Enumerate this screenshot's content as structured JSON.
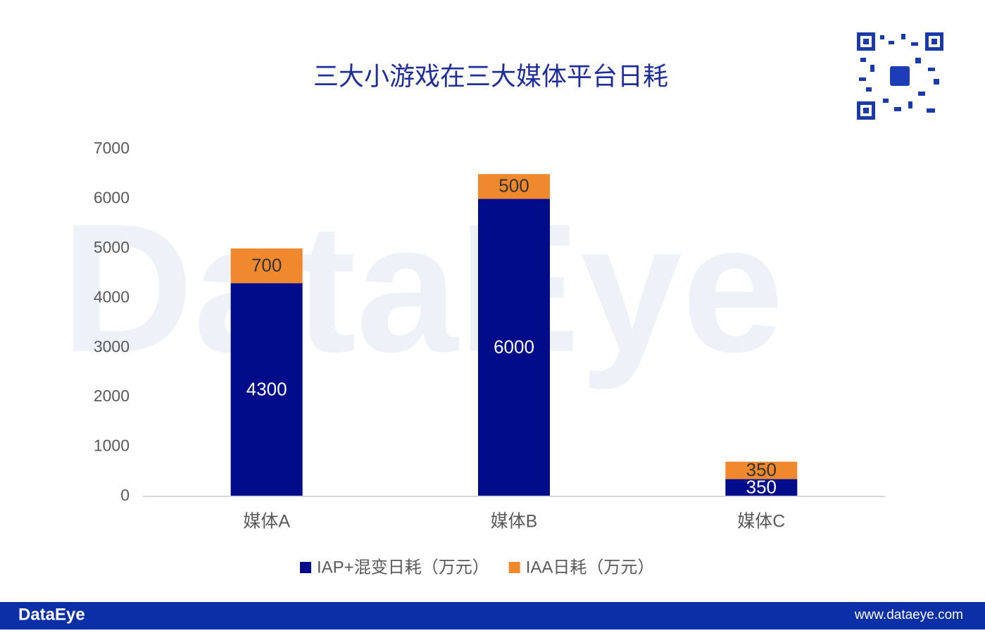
{
  "chart_data": {
    "type": "stacked_bar",
    "title": "三大小游戏在三大媒体平台日耗",
    "categories": [
      "媒体A",
      "媒体B",
      "媒体C"
    ],
    "series": [
      {
        "name": "IAP+混变日耗（万元）",
        "color": "#000c8a",
        "values": [
          4300,
          6000,
          350
        ]
      },
      {
        "name": "IAA日耗（万元）",
        "color": "#f0892e",
        "values": [
          700,
          500,
          350
        ]
      }
    ],
    "ylim": [
      0,
      7000
    ],
    "yticks": [
      0,
      1000,
      2000,
      3000,
      4000,
      5000,
      6000,
      7000
    ],
    "grid": false,
    "legend": "bottom"
  },
  "footer": {
    "brand": "DataEye",
    "url": "www.dataeye.com"
  }
}
